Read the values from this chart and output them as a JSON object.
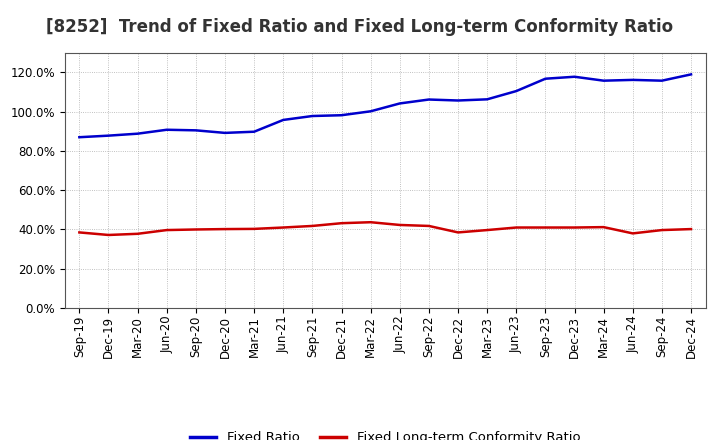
{
  "title": "[8252]  Trend of Fixed Ratio and Fixed Long-term Conformity Ratio",
  "x_labels": [
    "Sep-19",
    "Dec-19",
    "Mar-20",
    "Jun-20",
    "Sep-20",
    "Dec-20",
    "Mar-21",
    "Jun-21",
    "Sep-21",
    "Dec-21",
    "Mar-22",
    "Jun-22",
    "Sep-22",
    "Dec-22",
    "Mar-23",
    "Jun-23",
    "Sep-23",
    "Dec-23",
    "Mar-24",
    "Jun-24",
    "Sep-24",
    "Dec-24"
  ],
  "fixed_ratio": [
    0.87,
    0.878,
    0.888,
    0.908,
    0.905,
    0.892,
    0.898,
    0.958,
    0.978,
    0.982,
    1.002,
    1.042,
    1.062,
    1.057,
    1.063,
    1.105,
    1.168,
    1.178,
    1.158,
    1.162,
    1.158,
    1.19
  ],
  "fixed_lt_ratio": [
    0.385,
    0.372,
    0.378,
    0.397,
    0.4,
    0.402,
    0.403,
    0.41,
    0.418,
    0.432,
    0.437,
    0.423,
    0.418,
    0.385,
    0.397,
    0.41,
    0.41,
    0.41,
    0.412,
    0.38,
    0.397,
    0.402
  ],
  "fixed_ratio_color": "#0000CC",
  "fixed_lt_ratio_color": "#CC0000",
  "background_color": "#ffffff",
  "plot_bg_color": "#ffffff",
  "grid_color": "#999999",
  "ylim": [
    0.0,
    1.3
  ],
  "yticks": [
    0.0,
    0.2,
    0.4,
    0.6,
    0.8,
    1.0,
    1.2
  ],
  "legend_fixed_ratio": "Fixed Ratio",
  "legend_fixed_lt_ratio": "Fixed Long-term Conformity Ratio",
  "title_fontsize": 12,
  "axis_fontsize": 8.5,
  "legend_fontsize": 9.5,
  "line_width": 1.8
}
